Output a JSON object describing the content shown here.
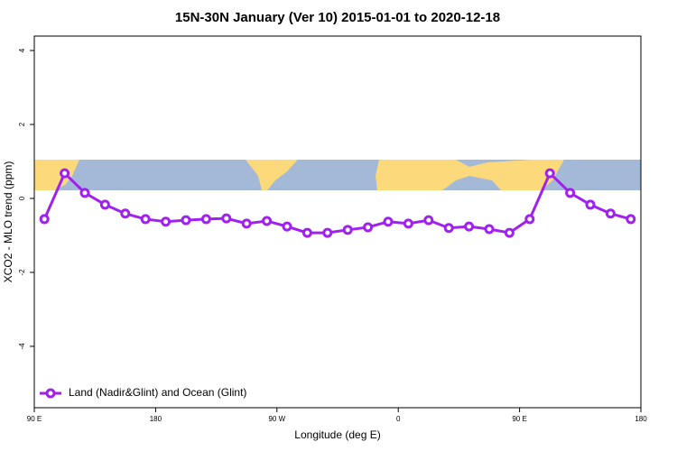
{
  "chart_data": {
    "type": "line",
    "title": "15N-30N January (Ver 10)   2015-01-01 to 2020-12-18",
    "x_label": "Longitude (deg E)",
    "y_label": "XCO2 - MLO trend (ppm)",
    "xlim": [
      90,
      540
    ],
    "ylim": [
      -5.66,
      4.39
    ],
    "xticks": [
      {
        "value": 90,
        "label": "90 E"
      },
      180,
      {
        "value": 270,
        "label": "90 W"
      },
      {
        "value": 360,
        "label": "0"
      },
      {
        "value": 450,
        "label": "90 E"
      },
      180
    ],
    "yticks": [
      4,
      2,
      0,
      -2,
      -4
    ],
    "x": [
      97.5,
      112.5,
      127.5,
      142.5,
      157.5,
      172.5,
      187.5,
      202.5,
      217.5,
      232.5,
      247.5,
      262.5,
      277.5,
      292.5,
      307.5,
      322.5,
      337.5,
      352.5,
      367.5,
      382.5,
      397.5,
      412.5,
      427.5,
      442.5,
      457.5,
      472.5,
      487.5,
      502.5,
      517.5,
      532.5
    ],
    "series": [
      {
        "name": "Land (Nadir&Glint) and Ocean (Glint)",
        "color": "#a020f0",
        "values": [
          -0.56,
          0.68,
          0.15,
          -0.17,
          -0.41,
          -0.56,
          -0.63,
          -0.59,
          -0.56,
          -0.54,
          -0.68,
          -0.61,
          -0.76,
          -0.93,
          -0.93,
          -0.85,
          -0.78,
          -0.63,
          -0.68,
          -0.59,
          -0.8,
          -0.76,
          -0.83,
          -0.93,
          -0.56,
          0.68,
          0.15,
          -0.17,
          -0.41,
          -0.56
        ]
      }
    ],
    "legend": "bottom-left"
  }
}
